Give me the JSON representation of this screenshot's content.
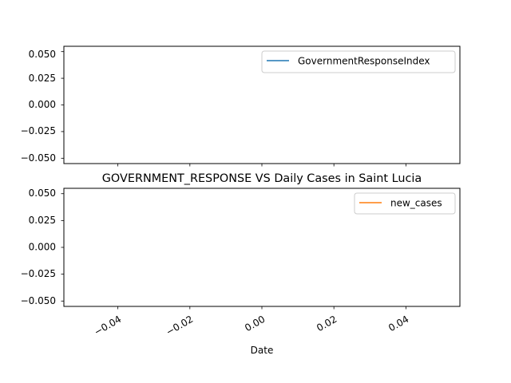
{
  "chart_data": [
    {
      "type": "line",
      "title": "",
      "xlabel": "",
      "ylabel": "",
      "xlim": [
        -0.055,
        0.055
      ],
      "ylim": [
        -0.055,
        0.055
      ],
      "yticks": [
        "0.050",
        "0.025",
        "0.000",
        "−0.025",
        "−0.050"
      ],
      "ytick_values": [
        0.05,
        0.025,
        0.0,
        -0.025,
        -0.05
      ],
      "xtick_values": [
        -0.04,
        -0.02,
        0.0,
        0.02,
        0.04
      ],
      "xticks": [],
      "legend_position": "top-right",
      "grid": false,
      "series": [
        {
          "name": "GovernmentResponseIndex",
          "color": "#1f77b4",
          "x": [],
          "y": []
        }
      ]
    },
    {
      "type": "line",
      "title": "GOVERNMENT_RESPONSE VS Daily Cases in Saint Lucia",
      "xlabel": "Date",
      "ylabel": "",
      "xlim": [
        -0.055,
        0.055
      ],
      "ylim": [
        -0.055,
        0.055
      ],
      "yticks": [
        "0.050",
        "0.025",
        "0.000",
        "−0.025",
        "−0.050"
      ],
      "ytick_values": [
        0.05,
        0.025,
        0.0,
        -0.025,
        -0.05
      ],
      "xtick_values": [
        -0.04,
        -0.02,
        0.0,
        0.02,
        0.04
      ],
      "xticks": [
        "−0.04",
        "−0.02",
        "0.00",
        "0.02",
        "0.04"
      ],
      "legend_position": "top-right",
      "grid": false,
      "series": [
        {
          "name": "new_cases",
          "color": "#ff7f0e",
          "x": [],
          "y": []
        }
      ]
    }
  ]
}
